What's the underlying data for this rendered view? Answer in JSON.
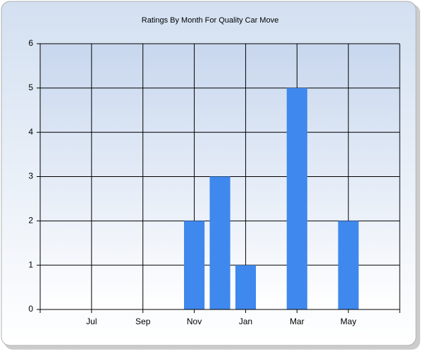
{
  "chart_data": {
    "type": "bar",
    "title": "Ratings By Month For Quality Car Move",
    "categories": [
      null,
      "Jul",
      null,
      "Sep",
      null,
      "Nov",
      null,
      "Jan",
      null,
      "Mar",
      null,
      "May",
      null
    ],
    "values": [
      null,
      null,
      null,
      null,
      null,
      2,
      3,
      1,
      null,
      5,
      null,
      2,
      null
    ],
    "color": "#3f88ee",
    "ylim": [
      0,
      6
    ],
    "yticks": [
      0,
      1,
      2,
      3,
      4,
      5,
      6
    ],
    "grid": true
  }
}
